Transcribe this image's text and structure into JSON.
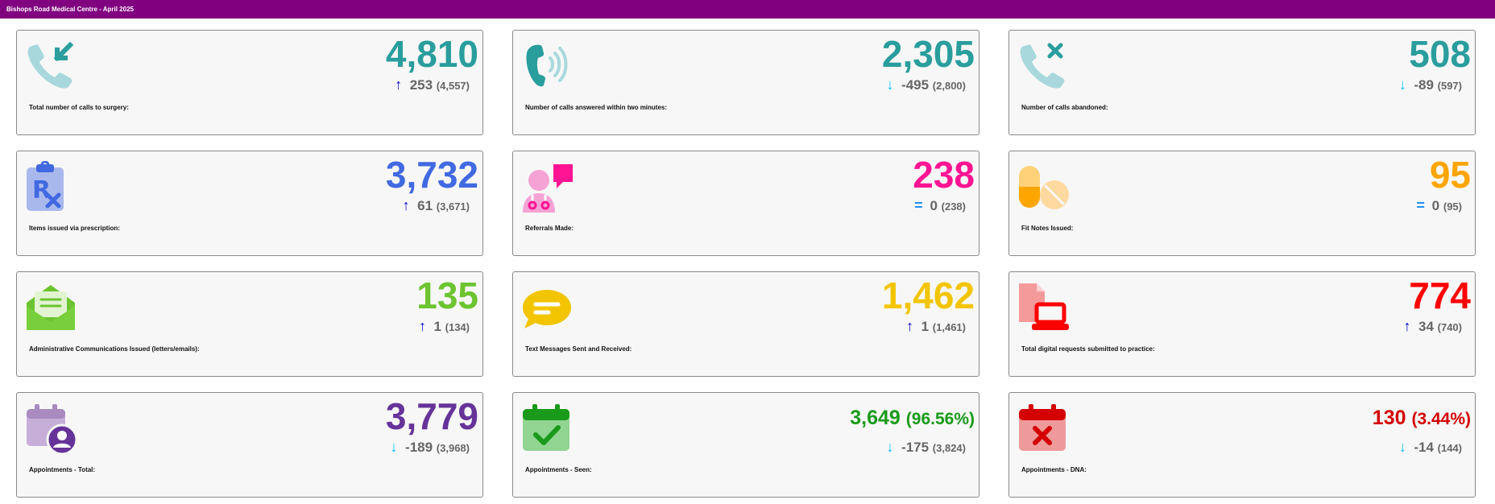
{
  "header": {
    "title": "Bishops Road Medical Centre - April 2025"
  },
  "cards": [
    {
      "label": "Total number of calls to surgery:",
      "value": "4,810",
      "change": "253",
      "previous": "(4,557)",
      "direction": "up",
      "arrow": "↑",
      "color": "#2a9d9d",
      "icon": "incoming-call-icon"
    },
    {
      "label": "Number of calls answered within two minutes:",
      "value": "2,305",
      "change": "-495",
      "previous": "(2,800)",
      "direction": "down",
      "arrow": "↓",
      "color": "#2a9d9d",
      "icon": "call-ringing-icon"
    },
    {
      "label": "Number of calls abandoned:",
      "value": "508",
      "change": "-89",
      "previous": "(597)",
      "direction": "down",
      "arrow": "↓",
      "color": "#2a9d9d",
      "icon": "missed-call-icon"
    },
    {
      "label": "Items issued via prescription:",
      "value": "3,732",
      "change": "61",
      "previous": "(3,671)",
      "direction": "up",
      "arrow": "↑",
      "color": "#4169e1",
      "icon": "prescription-icon"
    },
    {
      "label": "Referrals Made:",
      "value": "238",
      "change": "0",
      "previous": "(238)",
      "direction": "equal",
      "arrow": "=",
      "color": "#ff1493",
      "icon": "doctor-referral-icon"
    },
    {
      "label": "Fit Notes Issued:",
      "value": "95",
      "change": "0",
      "previous": "(95)",
      "direction": "equal",
      "arrow": "=",
      "color": "#ffa500",
      "icon": "pills-icon"
    },
    {
      "label": "Administrative Communications Issued (letters/emails):",
      "value": "135",
      "change": "1",
      "previous": "(134)",
      "direction": "up",
      "arrow": "↑",
      "color": "#6cc430",
      "icon": "open-mail-icon"
    },
    {
      "label": "Text Messages Sent and Received:",
      "value": "1,462",
      "change": "1",
      "previous": "(1,461)",
      "direction": "up",
      "arrow": "↑",
      "color": "#f2c500",
      "icon": "chat-bubble-icon"
    },
    {
      "label": "Total digital requests submitted to practice:",
      "value": "774",
      "change": "34",
      "previous": "(740)",
      "direction": "up",
      "arrow": "↑",
      "color": "#ff0000",
      "icon": "laptop-document-icon"
    },
    {
      "label": "Appointments - Total:",
      "value": "3,779",
      "change": "-189",
      "previous": "(3,968)",
      "direction": "down",
      "arrow": "↓",
      "color": "#663399",
      "icon": "calendar-user-icon"
    },
    {
      "label": "Appointments - Seen:",
      "value": "3,649",
      "percent": "(96.56%)",
      "change": "-175",
      "previous": "(3,824)",
      "direction": "down",
      "arrow": "↓",
      "color": "#1a9a1a",
      "icon": "calendar-check-icon"
    },
    {
      "label": "Appointments - DNA:",
      "value": "130",
      "percent": "(3.44%)",
      "change": "-14",
      "previous": "(144)",
      "direction": "down",
      "arrow": "↓",
      "color": "#d40000",
      "icon": "calendar-cross-icon"
    }
  ],
  "arrow_colors": {
    "up": "#0000cc",
    "down": "#00bfff",
    "equal": "#1e90ff"
  }
}
